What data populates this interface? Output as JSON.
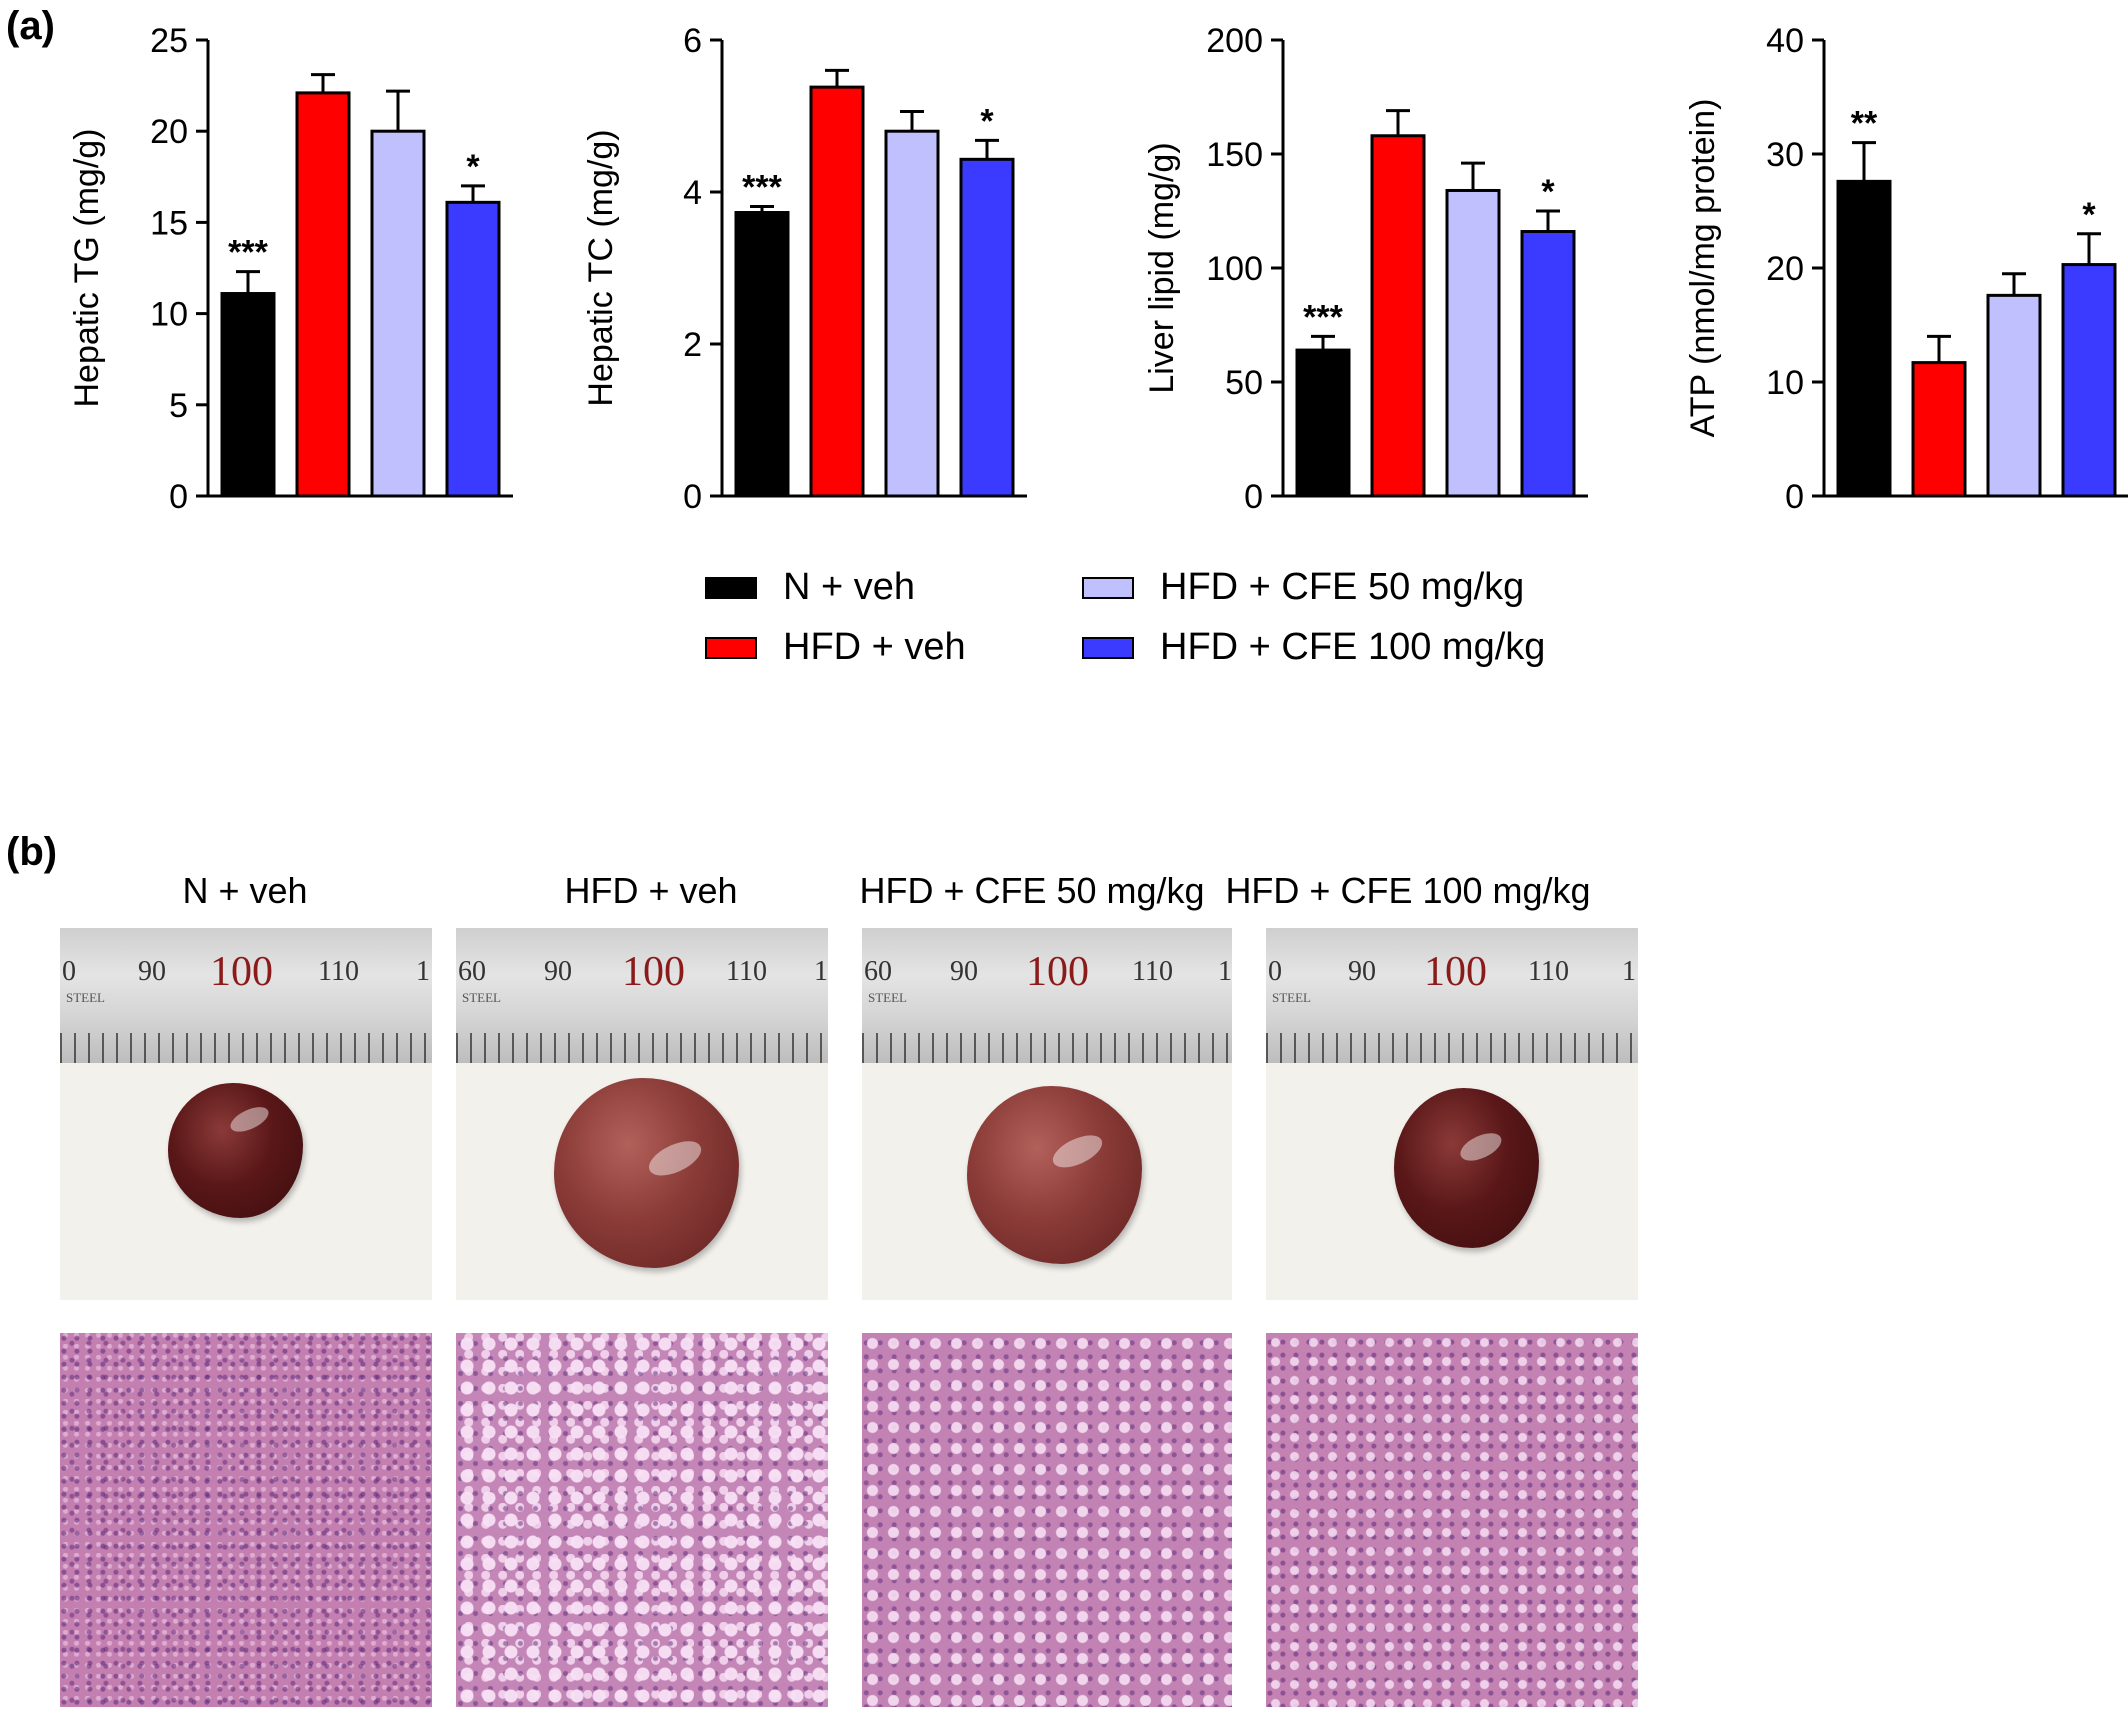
{
  "panels": {
    "a": "(a)",
    "b": "(b)"
  },
  "colors": {
    "n_veh": "#000000",
    "hfd_veh": "#ff0000",
    "cfe50": "#c0c0ff",
    "cfe100": "#3b3bff"
  },
  "chart_data": [
    {
      "type": "bar",
      "categories": [
        "N + veh",
        "HFD + veh",
        "HFD + CFE 50 mg/kg",
        "HFD + CFE 100 mg/kg"
      ],
      "values": [
        11.1,
        22.1,
        20.0,
        16.1
      ],
      "errors": [
        1.2,
        1.0,
        2.2,
        0.9
      ],
      "significance": [
        "***",
        "",
        "",
        "*"
      ],
      "ylabel": "Hepatic TG (mg/g)",
      "ylim": [
        0,
        25
      ],
      "yticks": [
        0,
        5,
        10,
        15,
        20,
        25
      ]
    },
    {
      "type": "bar",
      "categories": [
        "N + veh",
        "HFD + veh",
        "HFD + CFE 50 mg/kg",
        "HFD + CFE 100 mg/kg"
      ],
      "values": [
        3.73,
        5.38,
        4.8,
        4.43
      ],
      "errors": [
        0.08,
        0.22,
        0.26,
        0.25
      ],
      "significance": [
        "***",
        "",
        "",
        "*"
      ],
      "ylabel": "Hepatic TC (mg/g)",
      "ylim": [
        0,
        6
      ],
      "yticks": [
        0,
        2,
        4,
        6
      ]
    },
    {
      "type": "bar",
      "categories": [
        "N + veh",
        "HFD + veh",
        "HFD + CFE 50 mg/kg",
        "HFD + CFE 100 mg/kg"
      ],
      "values": [
        64,
        158,
        134,
        116
      ],
      "errors": [
        6,
        11,
        12,
        9
      ],
      "significance": [
        "***",
        "",
        "",
        "*"
      ],
      "ylabel": "Liver lipid (mg/g)",
      "ylim": [
        0,
        200
      ],
      "yticks": [
        0,
        50,
        100,
        150,
        200
      ]
    },
    {
      "type": "bar",
      "categories": [
        "N + veh",
        "HFD + veh",
        "HFD + CFE 50 mg/kg",
        "HFD + CFE 100 mg/kg"
      ],
      "values": [
        27.6,
        11.7,
        17.6,
        20.3
      ],
      "errors": [
        3.4,
        2.3,
        1.9,
        2.7
      ],
      "significance": [
        "**",
        "",
        "",
        "*"
      ],
      "ylabel": "ATP (nmol/mg protein)",
      "ylim": [
        0,
        40
      ],
      "yticks": [
        0,
        10,
        20,
        30,
        40
      ]
    }
  ],
  "legend": {
    "n_veh": "N + veh",
    "hfd_veh": "HFD + veh",
    "cfe50": "HFD + CFE 50 mg/kg",
    "cfe100": "HFD + CFE 100 mg/kg"
  },
  "photo_titles": [
    "N + veh",
    "HFD + veh",
    "HFD + CFE 50 mg/kg",
    "HFD + CFE 100 mg/kg"
  ],
  "rulers": [
    {
      "left": "0",
      "a": "90",
      "b": "100",
      "c": "110",
      "d": "1"
    },
    {
      "left": "60",
      "a": "90",
      "b": "100",
      "c": "110",
      "d": "1"
    },
    {
      "left": "60",
      "a": "90",
      "b": "100",
      "c": "110",
      "d": "1"
    },
    {
      "left": "0",
      "a": "90",
      "b": "100",
      "c": "110",
      "d": "1"
    }
  ],
  "ruler_brand": "STEEL"
}
